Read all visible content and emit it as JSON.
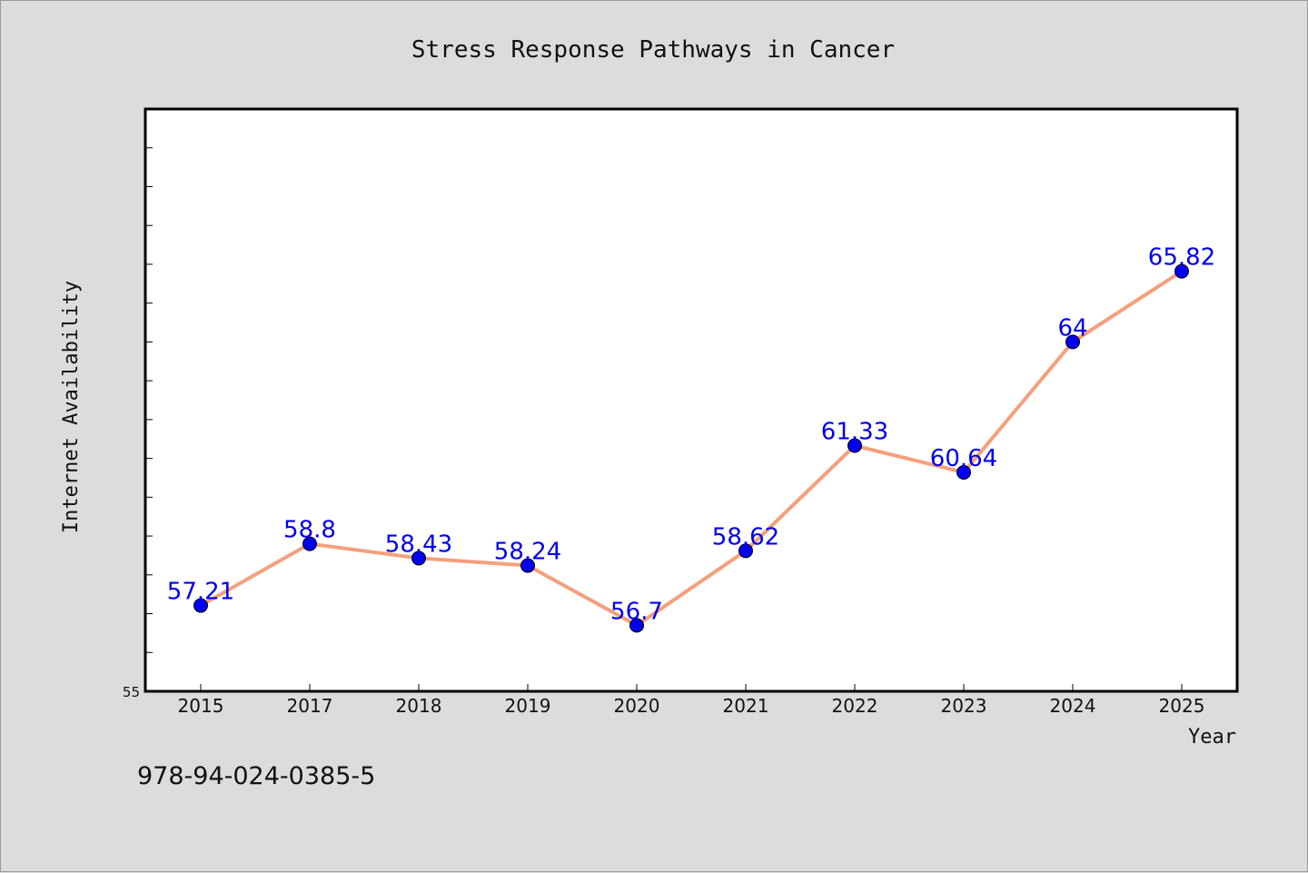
{
  "chart_data": {
    "type": "line",
    "title": "Stress Response Pathways in Cancer",
    "xlabel": "Year",
    "ylabel": "Internet Availability",
    "categories": [
      "2015",
      "2017",
      "2018",
      "2019",
      "2020",
      "2021",
      "2022",
      "2023",
      "2024",
      "2025"
    ],
    "series": [
      {
        "values": [
          57.21,
          58.8,
          58.43,
          58.24,
          56.7,
          58.62,
          61.33,
          60.64,
          64,
          65.82
        ]
      }
    ],
    "data_labels": [
      "57.21",
      "58.8",
      "58.43",
      "58.24",
      "56.7",
      "58.62",
      "61.33",
      "60.64",
      "64",
      "65.82"
    ],
    "ylim": [
      55,
      70
    ],
    "yticks_labeled": [
      "55"
    ],
    "grid": false,
    "legend": "none",
    "colors": {
      "line": "#f4a07c",
      "marker": "#0000ee",
      "label": "#0000ee",
      "plot_bg": "#ffffff",
      "page_bg": "#dcdcdc"
    }
  },
  "footer_text": "978-94-024-0385-5"
}
